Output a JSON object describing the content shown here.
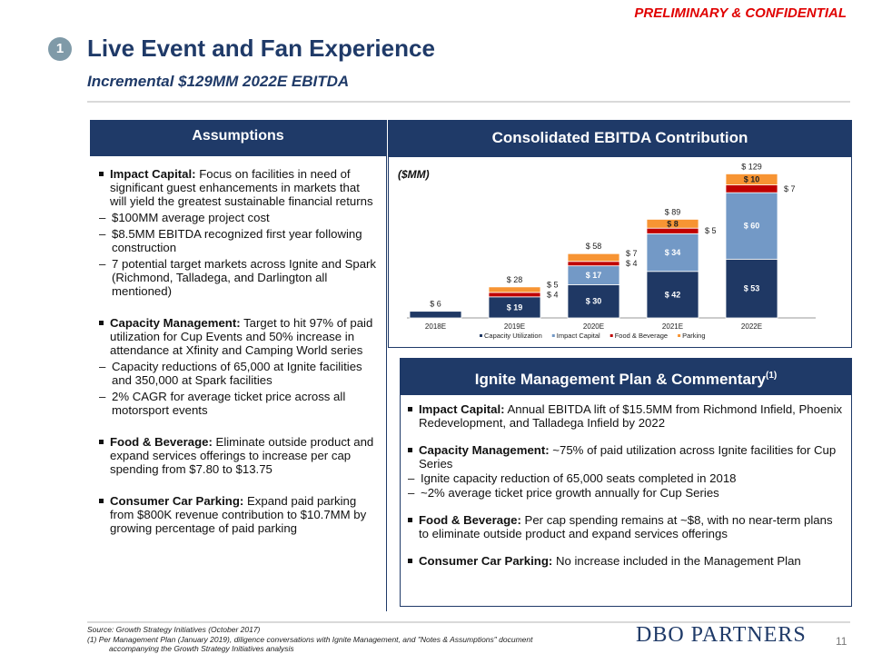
{
  "confidential": "PRELIMINARY & CONFIDENTIAL",
  "section_number": "1",
  "title": "Live Event and Fan Experience",
  "subtitle": "Incremental $129MM 2022E EBITDA",
  "assumptions": {
    "header": "Assumptions",
    "items": [
      {
        "bold": "Impact Capital:",
        "text": " Focus on facilities in need of significant guest enhancements in markets that will yield the greatest sustainable financial returns",
        "subs": [
          "$100MM  average project cost",
          "$8.5MM EBITDA recognized first year following construction",
          "7 potential target markets across Ignite and Spark (Richmond, Talladega, and Darlington all mentioned)"
        ]
      },
      {
        "bold": "Capacity Management:",
        "text": " Target to hit 97% of paid utilization for Cup Events and 50% increase in attendance at Xfinity and Camping World series",
        "subs": [
          "Capacity reductions of 65,000 at Ignite facilities and 350,000 at Spark facilities",
          "2% CAGR for average ticket price across all motorsport events"
        ]
      },
      {
        "bold": "Food & Beverage:",
        "text": " Eliminate outside product and expand services offerings to increase per cap spending from $7.80 to $13.75",
        "subs": []
      },
      {
        "bold": "Consumer Car Parking:",
        "text": " Expand paid parking from $800K revenue contribution to $10.7MM by growing percentage of paid parking",
        "subs": []
      }
    ]
  },
  "chart_header": "Consolidated EBITDA Contribution",
  "chart_data": {
    "type": "bar",
    "stacked": true,
    "unit_label": "($MM)",
    "categories": [
      "2018E",
      "2019E",
      "2020E",
      "2021E",
      "2022E"
    ],
    "series": [
      {
        "name": "Capacity Utilization",
        "color": "#1f3864",
        "values": [
          6,
          19,
          30,
          42,
          53
        ]
      },
      {
        "name": "Impact Capital",
        "color": "#7399c6",
        "values": [
          0,
          0,
          17,
          34,
          60
        ]
      },
      {
        "name": "Food & Beverage",
        "color": "#c00000",
        "values": [
          0,
          4,
          4,
          5,
          7
        ]
      },
      {
        "name": "Parking",
        "color": "#f79433",
        "values": [
          0,
          5,
          7,
          8,
          10
        ]
      }
    ],
    "totals": [
      "$ 6",
      "$ 28",
      "$ 58",
      "$ 89",
      "$ 129"
    ],
    "legend": "bottom"
  },
  "ignite": {
    "header": "Ignite Management Plan & Commentary",
    "header_sup": "(1)",
    "items": [
      {
        "bold": "Impact Capital:",
        "text": " Annual EBITDA lift of $15.5MM from Richmond Infield, Phoenix Redevelopment, and Talladega Infield by 2022",
        "subs": []
      },
      {
        "bold": "Capacity Management:",
        "text": " ~75% of paid utilization across Ignite facilities for Cup Series",
        "subs": [
          "Ignite capacity reduction of 65,000 seats completed in 2018",
          "~2% average ticket price growth annually for Cup Series"
        ]
      },
      {
        "bold": "Food & Beverage:",
        "text": " Per cap spending remains at ~$8, with no near-term plans to eliminate outside product and expand services offerings",
        "subs": []
      },
      {
        "bold": "Consumer Car Parking:",
        "text": " No increase included in the Management Plan",
        "subs": []
      }
    ]
  },
  "footer": {
    "source": "Source: Growth Strategy Initiatives (October 2017)",
    "note1": "(1) Per Management Plan (January 2019), diligence conversations with Ignite Management, and \"Notes & Assumptions\" document",
    "note2": "accompanying the Growth Strategy Initiatives analysis",
    "logo": "DBO PARTNERS",
    "page": "11"
  }
}
